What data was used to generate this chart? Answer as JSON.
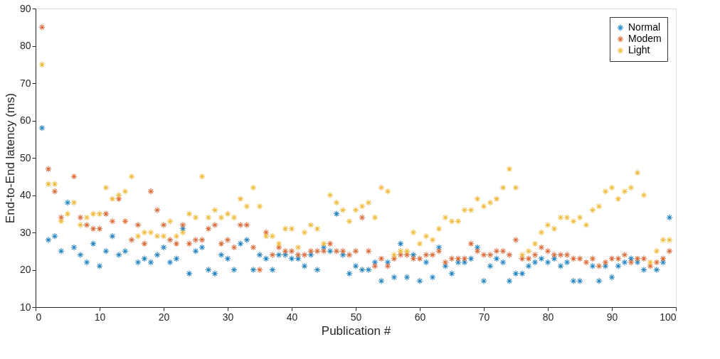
{
  "chart_data": {
    "type": "scatter",
    "xlabel": "Publication #",
    "ylabel": "End-to-End latency (ms)",
    "x": [
      1,
      2,
      3,
      4,
      5,
      6,
      7,
      8,
      9,
      10,
      11,
      12,
      13,
      14,
      15,
      16,
      17,
      18,
      19,
      20,
      21,
      22,
      23,
      24,
      25,
      26,
      27,
      28,
      29,
      30,
      31,
      32,
      33,
      34,
      35,
      36,
      37,
      38,
      39,
      40,
      41,
      42,
      43,
      44,
      45,
      46,
      47,
      48,
      49,
      50,
      51,
      52,
      53,
      54,
      55,
      56,
      57,
      58,
      59,
      60,
      61,
      62,
      63,
      64,
      65,
      66,
      67,
      68,
      69,
      70,
      71,
      72,
      73,
      74,
      75,
      76,
      77,
      78,
      79,
      80,
      81,
      82,
      83,
      84,
      85,
      86,
      87,
      88,
      89,
      90,
      91,
      92,
      93,
      94,
      95,
      96,
      97,
      98,
      99
    ],
    "series": [
      {
        "name": "Normal",
        "color": "#0072bd",
        "values": [
          58,
          28,
          29,
          25,
          38,
          26,
          24,
          22,
          27,
          21,
          25,
          29,
          24,
          25,
          null,
          22,
          23,
          22,
          24,
          26,
          22,
          23,
          31,
          19,
          25,
          26,
          20,
          19,
          24,
          23,
          20,
          27,
          28,
          20,
          24,
          23,
          20,
          24,
          24,
          23,
          23,
          21,
          24,
          20,
          26,
          25,
          35,
          24,
          19,
          21,
          20,
          20,
          22,
          17,
          22,
          18,
          27,
          18,
          24,
          17,
          22,
          18,
          26,
          21,
          19,
          22,
          22,
          23,
          26,
          17,
          21,
          23,
          22,
          17,
          19,
          19,
          21,
          22,
          23,
          22,
          23,
          21,
          22,
          17,
          17,
          null,
          21,
          17,
          21,
          18,
          21,
          22,
          23,
          22,
          20,
          null,
          20,
          22,
          34
        ]
      },
      {
        "name": "Modem",
        "color": "#d95319",
        "values": [
          85,
          47,
          41,
          34,
          null,
          45,
          34,
          32,
          31,
          31,
          35,
          33,
          39,
          33,
          28,
          32,
          27,
          41,
          36,
          32,
          28,
          27,
          32,
          27,
          28,
          28,
          31,
          32,
          27,
          28,
          26,
          32,
          32,
          26,
          20,
          30,
          24,
          26,
          25,
          25,
          24,
          24,
          25,
          25,
          25,
          27,
          25,
          25,
          24,
          25,
          34,
          25,
          21,
          23,
          21,
          23,
          24,
          24,
          23,
          23,
          24,
          24,
          25,
          22,
          23,
          23,
          23,
          27,
          25,
          24,
          24,
          25,
          25,
          24,
          28,
          23,
          23,
          24,
          26,
          25,
          24,
          24,
          24,
          23,
          23,
          22,
          23,
          21,
          22,
          23,
          23,
          24,
          22,
          23,
          23,
          21,
          22,
          23,
          25
        ]
      },
      {
        "name": "Light",
        "color": "#edb120",
        "values": [
          75,
          43,
          43,
          33,
          35,
          38,
          32,
          34,
          35,
          35,
          42,
          39,
          40,
          41,
          45,
          29,
          30,
          30,
          29,
          29,
          33,
          29,
          30,
          35,
          34,
          45,
          34,
          36,
          34,
          35,
          34,
          39,
          37,
          42,
          37,
          29,
          29,
          27,
          31,
          31,
          26,
          30,
          32,
          31,
          27,
          40,
          38,
          36,
          33,
          36,
          37,
          38,
          34,
          42,
          41,
          24,
          25,
          25,
          30,
          27,
          29,
          28,
          31,
          34,
          33,
          33,
          36,
          36,
          39,
          37,
          38,
          39,
          42,
          47,
          42,
          24,
          25,
          27,
          30,
          32,
          31,
          34,
          34,
          33,
          34,
          32,
          36,
          37,
          41,
          42,
          39,
          41,
          42,
          46,
          40,
          22,
          25,
          28,
          28
        ]
      }
    ],
    "xlim": [
      0,
      100
    ],
    "xticks": [
      0,
      10,
      20,
      30,
      40,
      50,
      60,
      70,
      80,
      90,
      100
    ],
    "ylim": [
      10,
      90
    ],
    "yticks": [
      10,
      20,
      30,
      40,
      50,
      60,
      70,
      80,
      90
    ],
    "marker": "cross",
    "legend": "top right",
    "grid": false
  }
}
